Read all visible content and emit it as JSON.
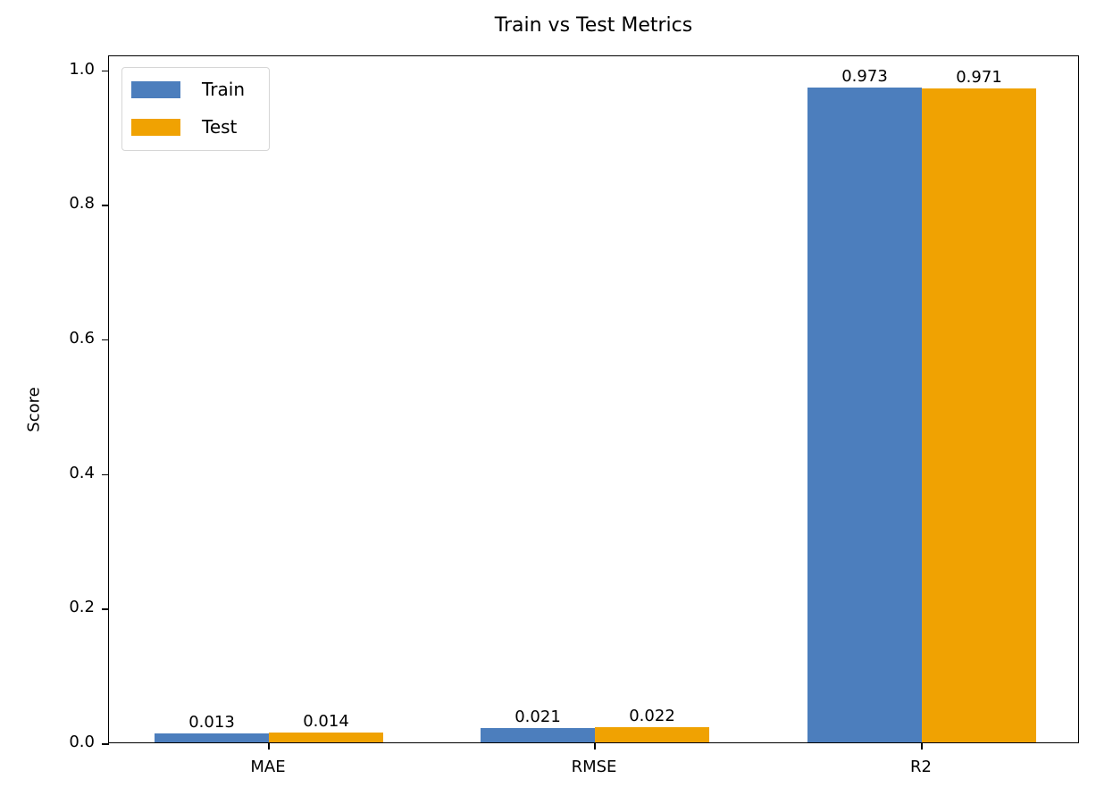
{
  "chart_data": {
    "type": "bar",
    "title": "Train vs Test Metrics",
    "xlabel": "",
    "ylabel": "Score",
    "categories": [
      "MAE",
      "RMSE",
      "R2"
    ],
    "series": [
      {
        "name": "Train",
        "color": "#4c7ebd",
        "values": [
          0.013,
          0.021,
          0.973
        ],
        "labels": [
          "0.013",
          "0.021",
          "0.973"
        ]
      },
      {
        "name": "Test",
        "color": "#f0a202",
        "values": [
          0.014,
          0.022,
          0.971
        ],
        "labels": [
          "0.014",
          "0.022",
          "0.971"
        ]
      }
    ],
    "ylim": [
      0,
      1.022
    ],
    "yticks": [
      "0.0",
      "0.2",
      "0.4",
      "0.6",
      "0.8",
      "1.0"
    ],
    "legend_position": "upper left",
    "grid": false
  }
}
